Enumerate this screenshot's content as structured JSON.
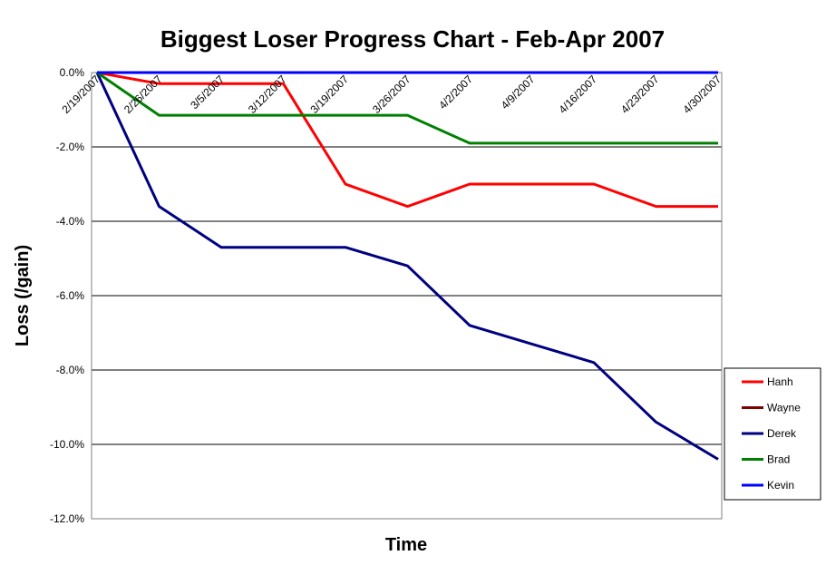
{
  "chart_data": {
    "type": "line",
    "title": "Biggest Loser Progress Chart - Feb-Apr 2007",
    "xlabel": "Time",
    "ylabel": "Loss (/gain)",
    "x": [
      "2/19/2007",
      "2/26/2007",
      "3/5/2007",
      "3/12/2007",
      "3/19/2007",
      "3/26/2007",
      "4/2/2007",
      "4/9/2007",
      "4/16/2007",
      "4/23/2007",
      "4/30/2007"
    ],
    "y_ticks": [
      "0.0%",
      "-2.0%",
      "-4.0%",
      "-6.0%",
      "-8.0%",
      "-10.0%",
      "-12.0%"
    ],
    "ylim": [
      -12,
      0
    ],
    "grid": true,
    "legend_position": "right",
    "series": [
      {
        "name": "Hanh",
        "color": "#ff0000",
        "values": [
          0.0,
          -0.3,
          -0.3,
          -0.3,
          -3.0,
          -3.6,
          -3.0,
          -3.0,
          -3.0,
          -3.6,
          -3.6
        ]
      },
      {
        "name": "Wayne",
        "color": "#800000",
        "values": [
          0.0,
          0.0,
          0.0,
          0.0,
          0.0,
          0.0,
          0.0,
          0.0,
          0.0,
          0.0,
          0.0
        ]
      },
      {
        "name": "Derek",
        "color": "#000080",
        "values": [
          0.0,
          -3.6,
          -4.7,
          -4.7,
          -4.7,
          -5.2,
          -6.8,
          -7.3,
          -7.8,
          -9.4,
          -10.4
        ]
      },
      {
        "name": "Brad",
        "color": "#008000",
        "values": [
          0.0,
          -1.15,
          -1.15,
          -1.15,
          -1.15,
          -1.15,
          -1.9,
          -1.9,
          -1.9,
          -1.9,
          -1.9
        ]
      },
      {
        "name": "Kevin",
        "color": "#0000ff",
        "values": [
          0.0,
          0.0,
          0.0,
          0.0,
          0.0,
          0.0,
          0.0,
          0.0,
          0.0,
          0.0,
          0.0
        ]
      }
    ]
  }
}
